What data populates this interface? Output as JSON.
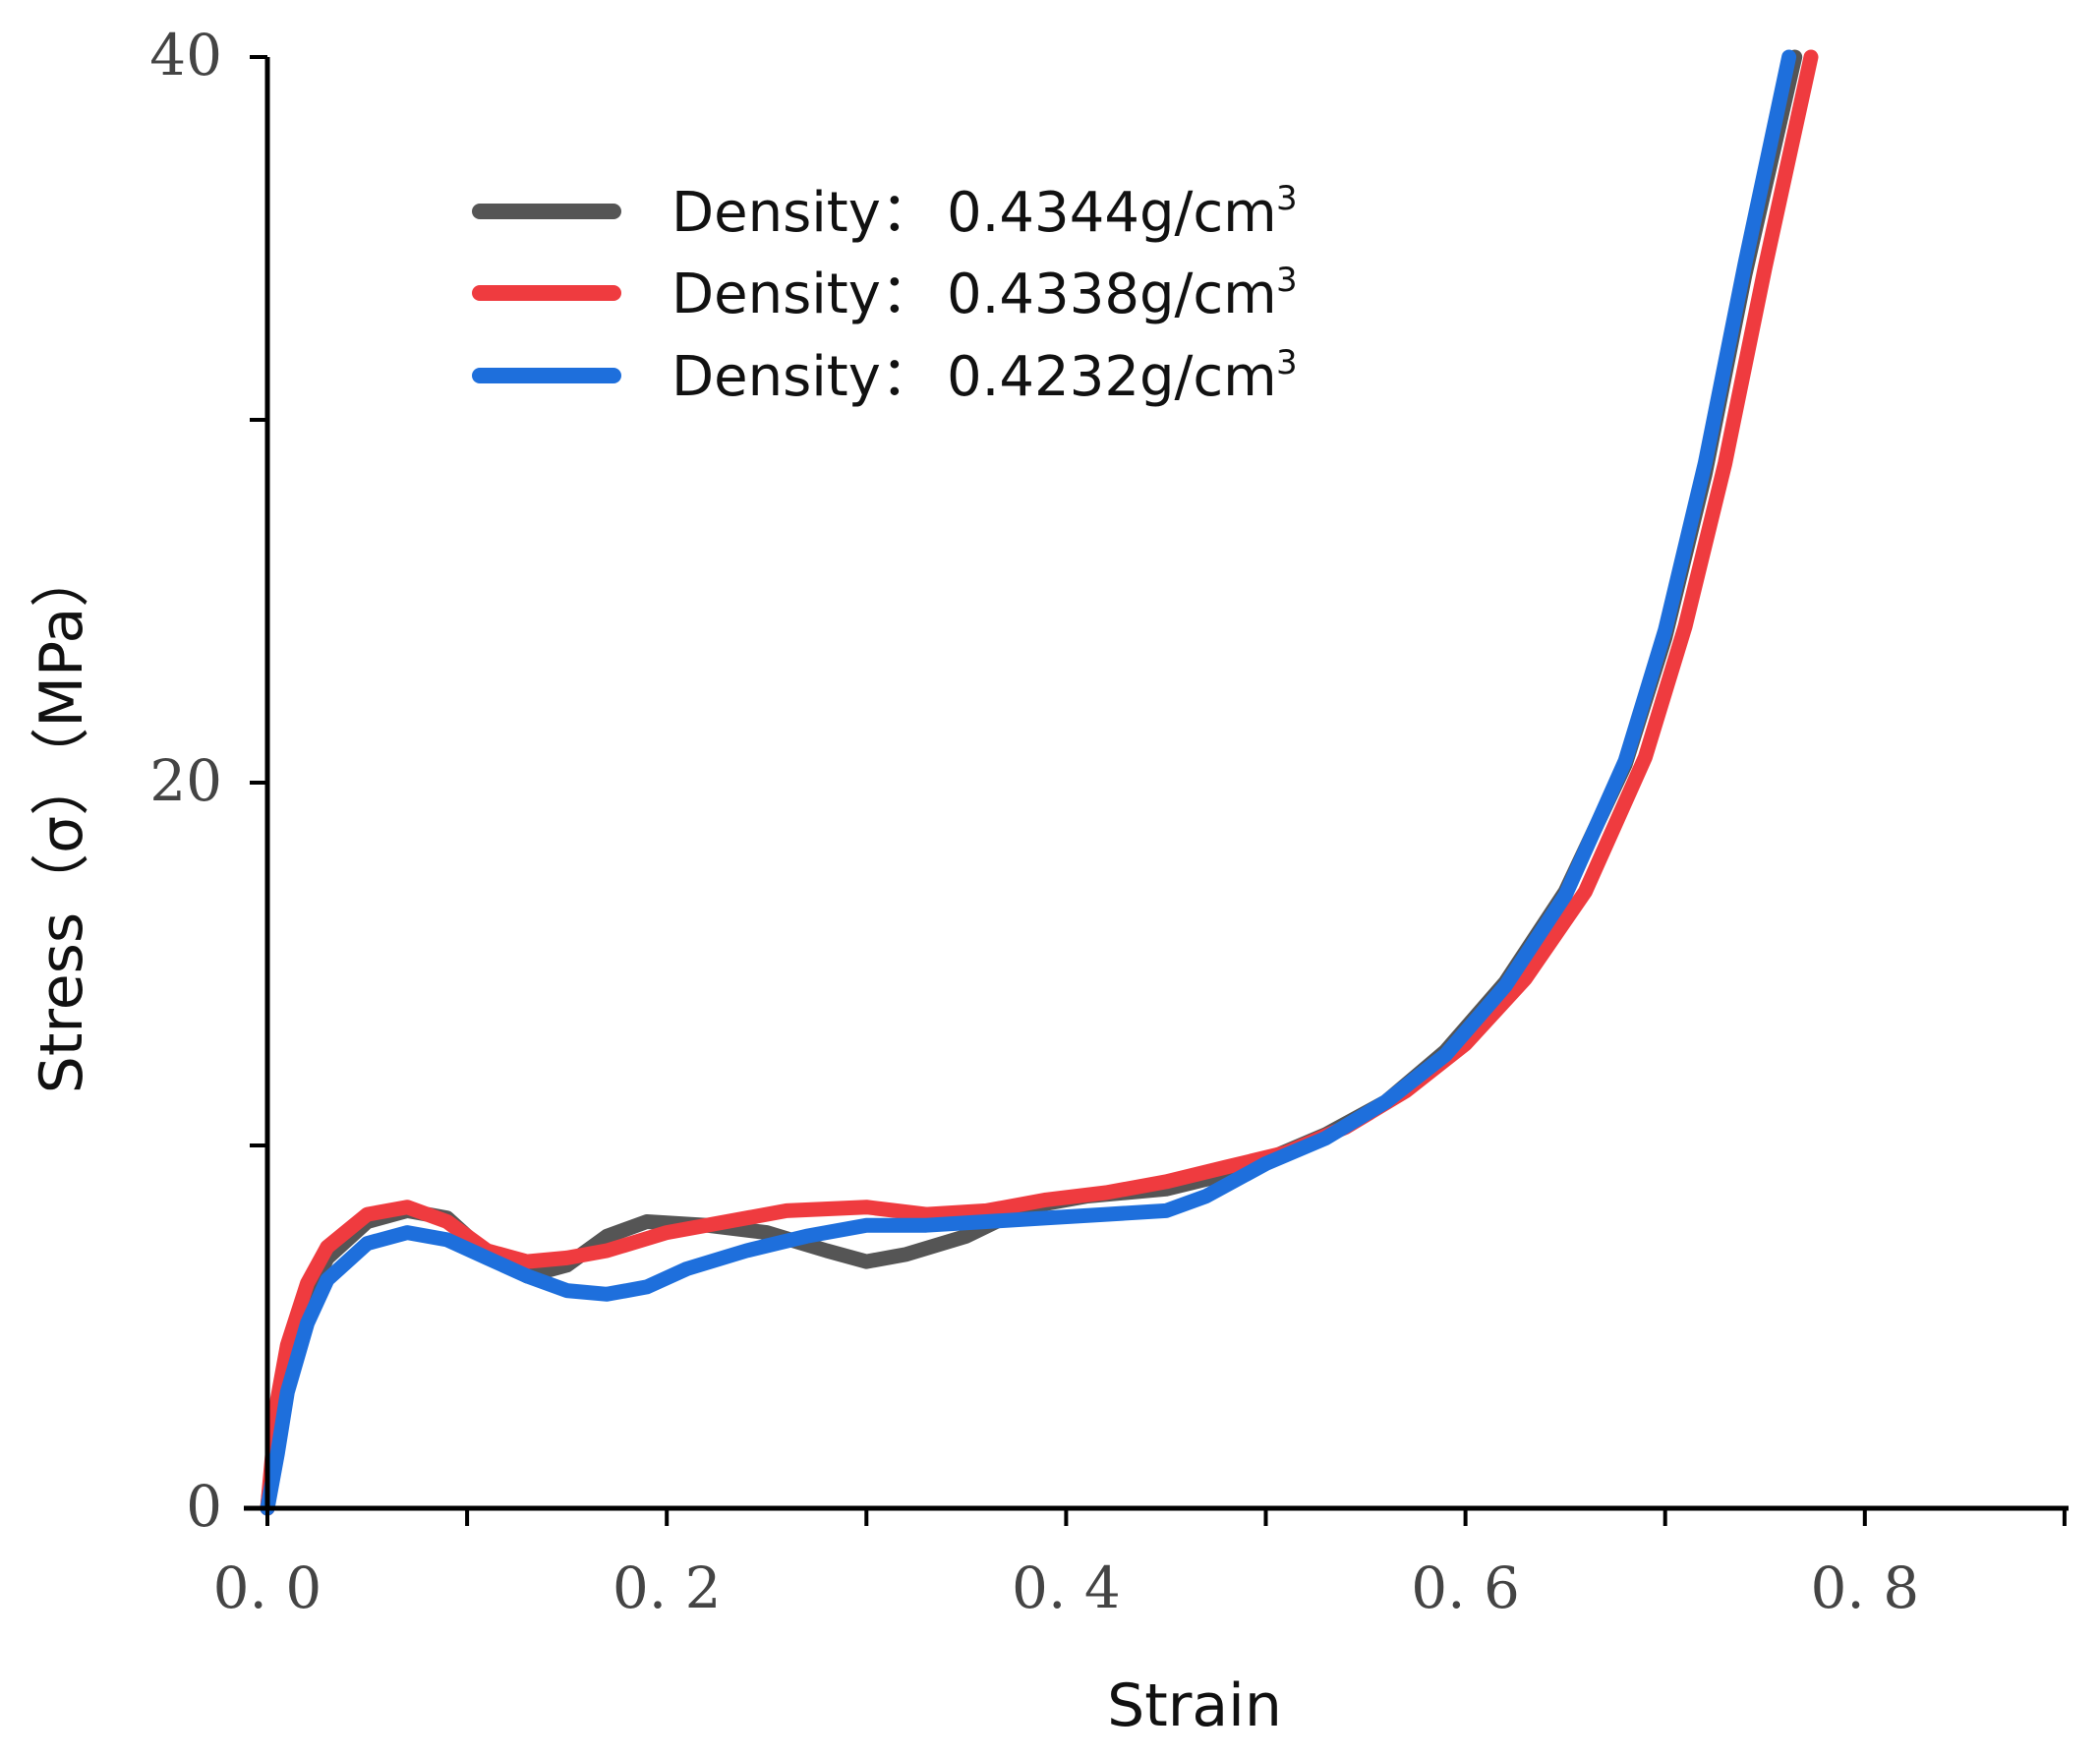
{
  "chart_data": {
    "type": "line",
    "title": "",
    "xlabel": "Strain",
    "ylabel": "Stress（σ）（MPa）",
    "xlim": [
      0,
      0.9
    ],
    "ylim": [
      0,
      40
    ],
    "x_ticks": [
      0,
      0.1,
      0.2,
      0.3,
      0.4,
      0.5,
      0.6,
      0.7,
      0.8,
      0.9
    ],
    "x_tick_labels": [
      {
        "value": 0.0,
        "label": "0. 0"
      },
      {
        "value": 0.2,
        "label": "0. 2"
      },
      {
        "value": 0.4,
        "label": "0. 4"
      },
      {
        "value": 0.6,
        "label": "0. 6"
      },
      {
        "value": 0.8,
        "label": "0. 8"
      }
    ],
    "y_ticks": [
      0,
      10,
      20,
      30,
      40
    ],
    "y_tick_labels": [
      {
        "value": 0,
        "label": "0"
      },
      {
        "value": 20,
        "label": "20"
      },
      {
        "value": 40,
        "label": "40"
      }
    ],
    "grid": false,
    "legend_position": "top-left",
    "series": [
      {
        "name": "Density：0.4344g/cm³",
        "legend_label": "Density：",
        "legend_value": "0.4344g/cm",
        "legend_sup": "3",
        "color": "#555555",
        "points": [
          [
            0,
            0
          ],
          [
            0.005,
            2.6
          ],
          [
            0.01,
            4.2
          ],
          [
            0.02,
            5.8
          ],
          [
            0.03,
            6.9
          ],
          [
            0.05,
            7.9
          ],
          [
            0.07,
            8.2
          ],
          [
            0.09,
            8.0
          ],
          [
            0.11,
            7.0
          ],
          [
            0.13,
            6.4
          ],
          [
            0.15,
            6.7
          ],
          [
            0.17,
            7.5
          ],
          [
            0.19,
            7.9
          ],
          [
            0.22,
            7.8
          ],
          [
            0.25,
            7.6
          ],
          [
            0.28,
            7.1
          ],
          [
            0.3,
            6.8
          ],
          [
            0.32,
            7.0
          ],
          [
            0.35,
            7.5
          ],
          [
            0.38,
            8.3
          ],
          [
            0.41,
            8.6
          ],
          [
            0.45,
            8.8
          ],
          [
            0.48,
            9.2
          ],
          [
            0.5,
            9.6
          ],
          [
            0.53,
            10.3
          ],
          [
            0.56,
            11.2
          ],
          [
            0.59,
            12.6
          ],
          [
            0.62,
            14.5
          ],
          [
            0.65,
            17.0
          ],
          [
            0.68,
            20.5
          ],
          [
            0.7,
            24.0
          ],
          [
            0.72,
            28.5
          ],
          [
            0.74,
            34.0
          ],
          [
            0.765,
            40.0
          ]
        ]
      },
      {
        "name": "Density：0.4338g/cm³",
        "legend_label": "Density：",
        "legend_value": "0.4338g/cm",
        "legend_sup": "3",
        "color": "#ef3b3f",
        "points": [
          [
            0,
            0
          ],
          [
            0.005,
            3.0
          ],
          [
            0.01,
            4.5
          ],
          [
            0.02,
            6.2
          ],
          [
            0.03,
            7.2
          ],
          [
            0.05,
            8.1
          ],
          [
            0.07,
            8.3
          ],
          [
            0.09,
            7.9
          ],
          [
            0.11,
            7.1
          ],
          [
            0.13,
            6.8
          ],
          [
            0.15,
            6.9
          ],
          [
            0.17,
            7.1
          ],
          [
            0.2,
            7.6
          ],
          [
            0.23,
            7.9
          ],
          [
            0.26,
            8.2
          ],
          [
            0.3,
            8.3
          ],
          [
            0.33,
            8.1
          ],
          [
            0.36,
            8.2
          ],
          [
            0.39,
            8.5
          ],
          [
            0.42,
            8.7
          ],
          [
            0.45,
            9.0
          ],
          [
            0.48,
            9.4
          ],
          [
            0.51,
            9.8
          ],
          [
            0.54,
            10.5
          ],
          [
            0.57,
            11.5
          ],
          [
            0.6,
            12.8
          ],
          [
            0.63,
            14.6
          ],
          [
            0.66,
            17.0
          ],
          [
            0.69,
            20.7
          ],
          [
            0.71,
            24.3
          ],
          [
            0.73,
            28.8
          ],
          [
            0.75,
            34.2
          ],
          [
            0.773,
            40.0
          ]
        ]
      },
      {
        "name": "Density：0.4232g/cm³",
        "legend_label": "Density：",
        "legend_value": "0.4232g/cm",
        "legend_sup": "3",
        "color": "#1e6fdc",
        "points": [
          [
            0,
            0
          ],
          [
            0.005,
            1.5
          ],
          [
            0.01,
            3.2
          ],
          [
            0.02,
            5.1
          ],
          [
            0.03,
            6.3
          ],
          [
            0.05,
            7.3
          ],
          [
            0.07,
            7.6
          ],
          [
            0.09,
            7.4
          ],
          [
            0.11,
            6.9
          ],
          [
            0.13,
            6.4
          ],
          [
            0.15,
            6.0
          ],
          [
            0.17,
            5.9
          ],
          [
            0.19,
            6.1
          ],
          [
            0.21,
            6.6
          ],
          [
            0.24,
            7.1
          ],
          [
            0.27,
            7.5
          ],
          [
            0.3,
            7.8
          ],
          [
            0.33,
            7.8
          ],
          [
            0.36,
            7.9
          ],
          [
            0.39,
            8.0
          ],
          [
            0.42,
            8.1
          ],
          [
            0.45,
            8.2
          ],
          [
            0.47,
            8.6
          ],
          [
            0.5,
            9.5
          ],
          [
            0.53,
            10.2
          ],
          [
            0.56,
            11.2
          ],
          [
            0.59,
            12.5
          ],
          [
            0.62,
            14.4
          ],
          [
            0.65,
            16.9
          ],
          [
            0.68,
            20.6
          ],
          [
            0.7,
            24.2
          ],
          [
            0.72,
            28.8
          ],
          [
            0.74,
            34.3
          ],
          [
            0.762,
            40.0
          ]
        ]
      }
    ]
  }
}
